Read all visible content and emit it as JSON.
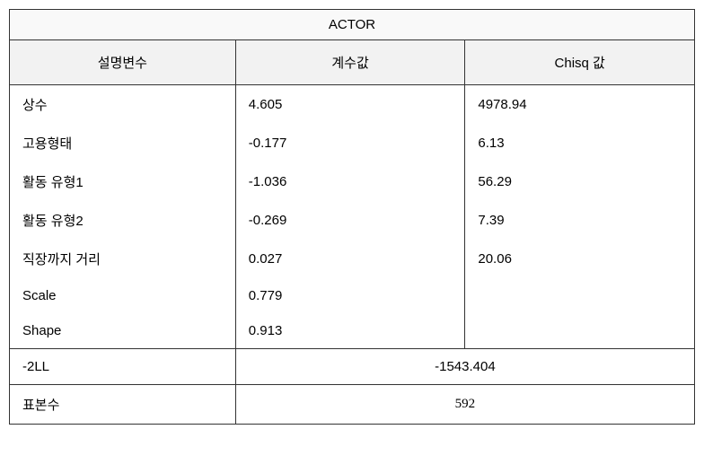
{
  "table": {
    "title": "ACTOR",
    "headers": {
      "col1": "설명변수",
      "col2": "계수값",
      "col3": "Chisq 값"
    },
    "rows": [
      {
        "var": "상수",
        "coef": "4.605",
        "chisq": "4978.94"
      },
      {
        "var": "고용형태",
        "coef": "-0.177",
        "chisq": "6.13"
      },
      {
        "var": "활동 유형1",
        "coef": "-1.036",
        "chisq": "56.29"
      },
      {
        "var": "활동 유형2",
        "coef": "-0.269",
        "chisq": "7.39"
      },
      {
        "var": "직장까지 거리",
        "coef": "0.027",
        "chisq": "20.06"
      },
      {
        "var": "Scale",
        "coef": "0.779",
        "chisq": ""
      },
      {
        "var": "Shape",
        "coef": "0.913",
        "chisq": ""
      }
    ],
    "footer": {
      "neg2ll_label": "-2LL",
      "neg2ll_value": "-1543.404",
      "sample_label": "표본수",
      "sample_value": "592"
    }
  }
}
